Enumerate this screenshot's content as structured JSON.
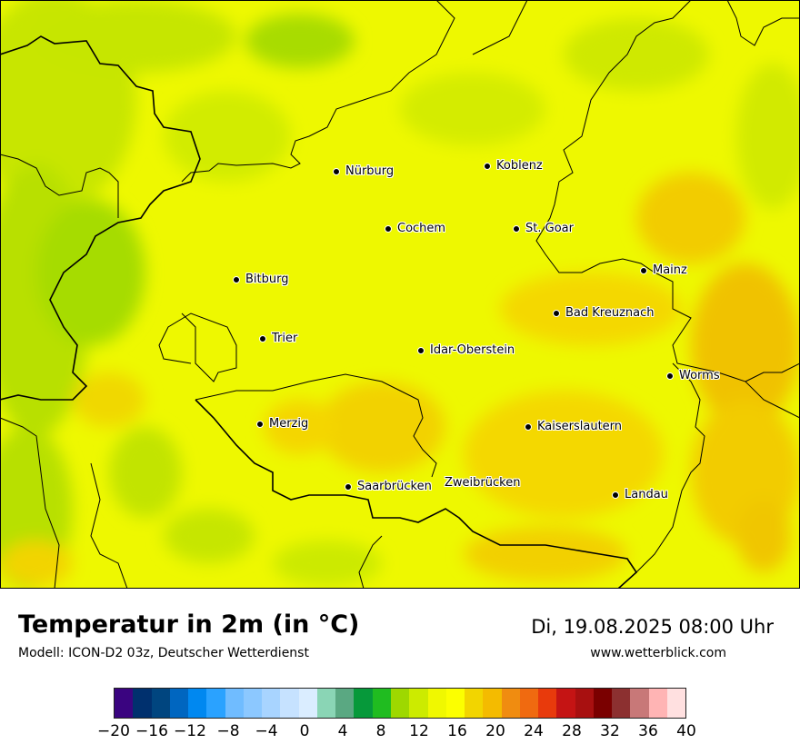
{
  "map": {
    "cities": [
      {
        "name": "Nürburg"
      },
      {
        "name": "Koblenz"
      },
      {
        "name": "Cochem"
      },
      {
        "name": "St. Goar"
      },
      {
        "name": "Mainz"
      },
      {
        "name": "Bitburg"
      },
      {
        "name": "Bad Kreuznach"
      },
      {
        "name": "Trier"
      },
      {
        "name": "Idar-Oberstein"
      },
      {
        "name": "Worms"
      },
      {
        "name": "Merzig"
      },
      {
        "name": "Kaiserslautern"
      },
      {
        "name": "Saarbrücken"
      },
      {
        "name": "Zweibrücken"
      },
      {
        "name": "Landau"
      }
    ]
  },
  "footer": {
    "title": "Temperatur in 2m (in °C)",
    "model": "Modell: ICON-D2 03z, Deutscher Wetterdienst",
    "datetime": "Di, 19.08.2025 08:00 Uhr",
    "website": "www.wetterblick.com"
  },
  "legend": {
    "colors": [
      "#3a0480",
      "#00306e",
      "#00457f",
      "#0066c0",
      "#0088f0",
      "#2aa2ff",
      "#70bcff",
      "#8cc8ff",
      "#a8d4ff",
      "#c6e2ff",
      "#daedff",
      "#8ad5b5",
      "#5aa882",
      "#06993a",
      "#20bc20",
      "#9ed800",
      "#cceb00",
      "#f0f800",
      "#fcff00",
      "#f2d500",
      "#f4bb00",
      "#f08c10",
      "#f06a10",
      "#e83a0c",
      "#c51414",
      "#a81010",
      "#7a0000",
      "#8c3030",
      "#c87878",
      "#ffb4b4",
      "#ffe0e0"
    ],
    "ticks": [
      "−20",
      "−16",
      "−12",
      "−8",
      "−4",
      "0",
      "4",
      "8",
      "12",
      "16",
      "20",
      "24",
      "28",
      "32",
      "36",
      "40"
    ]
  }
}
